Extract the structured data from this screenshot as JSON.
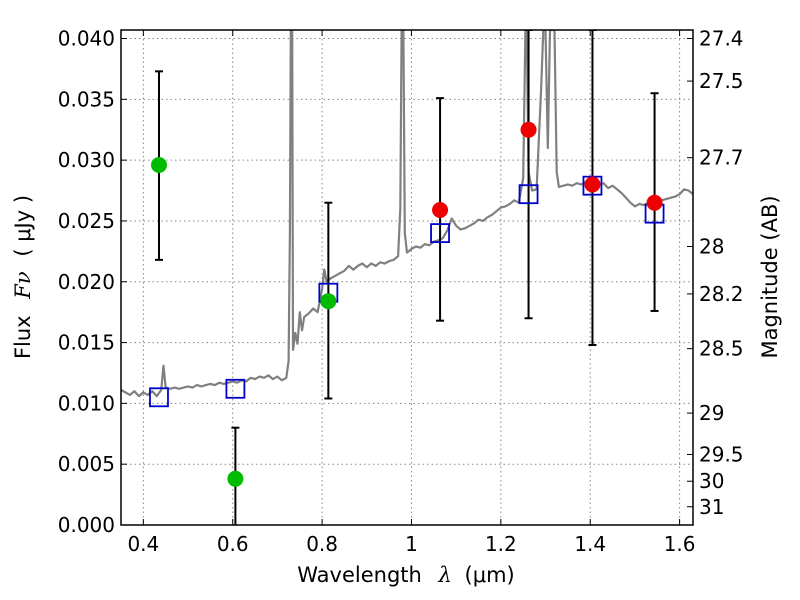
{
  "chart_data": {
    "type": "scatter",
    "xlabel": "Wavelength",
    "xlabel_symbol": "λ",
    "xlabel_unit": "(μm)",
    "ylabel": "Flux",
    "ylabel_symbol": "Fν",
    "ylabel_unit": "( μJy )",
    "ylabel_right": "Magnitude (AB)",
    "xlim": [
      0.35,
      1.63
    ],
    "ylim": [
      0.0,
      0.0407
    ],
    "grid": true,
    "x_ticks": [
      {
        "value": 0.4,
        "label": "0.4"
      },
      {
        "value": 0.6,
        "label": "0.6"
      },
      {
        "value": 0.8,
        "label": "0.8"
      },
      {
        "value": 1.0,
        "label": "1"
      },
      {
        "value": 1.2,
        "label": "1.2"
      },
      {
        "value": 1.4,
        "label": "1.4"
      },
      {
        "value": 1.6,
        "label": "1.6"
      }
    ],
    "y_ticks": [
      {
        "value": 0.0,
        "label": "0.000"
      },
      {
        "value": 0.005,
        "label": "0.005"
      },
      {
        "value": 0.01,
        "label": "0.010"
      },
      {
        "value": 0.015,
        "label": "0.015"
      },
      {
        "value": 0.02,
        "label": "0.020"
      },
      {
        "value": 0.025,
        "label": "0.025"
      },
      {
        "value": 0.03,
        "label": "0.030"
      },
      {
        "value": 0.035,
        "label": "0.035"
      },
      {
        "value": 0.04,
        "label": "0.040"
      }
    ],
    "magnitude_ticks": [
      {
        "value": 0.04,
        "label": "27.4"
      },
      {
        "value": 0.0365,
        "label": "27.5"
      },
      {
        "value": 0.0302,
        "label": "27.7"
      },
      {
        "value": 0.0229,
        "label": "28"
      },
      {
        "value": 0.019,
        "label": "28.2"
      },
      {
        "value": 0.0145,
        "label": "28.5"
      },
      {
        "value": 0.0092,
        "label": "29"
      },
      {
        "value": 0.0058,
        "label": "29.5"
      },
      {
        "value": 0.0036,
        "label": "30"
      },
      {
        "value": 0.0015,
        "label": "31"
      }
    ],
    "colors": {
      "spectrum": "#808080",
      "model_points": "#0000cc",
      "green_points": "#00bb00",
      "red_points": "#ee0000",
      "error_bars": "#000000",
      "grid": "#888888"
    },
    "series": [
      {
        "name": "model spectrum",
        "kind": "line",
        "points": [
          [
            0.35,
            0.0111
          ],
          [
            0.36,
            0.0109
          ],
          [
            0.37,
            0.0107
          ],
          [
            0.38,
            0.011
          ],
          [
            0.39,
            0.0106
          ],
          [
            0.4,
            0.0109
          ],
          [
            0.41,
            0.0107
          ],
          [
            0.42,
            0.011
          ],
          [
            0.43,
            0.0106
          ],
          [
            0.44,
            0.0111
          ],
          [
            0.445,
            0.0131
          ],
          [
            0.45,
            0.0113
          ],
          [
            0.46,
            0.0112
          ],
          [
            0.47,
            0.0113
          ],
          [
            0.48,
            0.0112
          ],
          [
            0.49,
            0.0113
          ],
          [
            0.5,
            0.0114
          ],
          [
            0.51,
            0.0113
          ],
          [
            0.52,
            0.0115
          ],
          [
            0.53,
            0.0114
          ],
          [
            0.54,
            0.0115
          ],
          [
            0.55,
            0.0116
          ],
          [
            0.56,
            0.0115
          ],
          [
            0.57,
            0.0117
          ],
          [
            0.58,
            0.0116
          ],
          [
            0.59,
            0.0117
          ],
          [
            0.6,
            0.0118
          ],
          [
            0.61,
            0.0117
          ],
          [
            0.62,
            0.0119
          ],
          [
            0.63,
            0.0118
          ],
          [
            0.64,
            0.0121
          ],
          [
            0.65,
            0.012
          ],
          [
            0.66,
            0.0122
          ],
          [
            0.67,
            0.0121
          ],
          [
            0.68,
            0.0123
          ],
          [
            0.69,
            0.012
          ],
          [
            0.7,
            0.0122
          ],
          [
            0.71,
            0.0119
          ],
          [
            0.72,
            0.0121
          ],
          [
            0.725,
            0.0135
          ],
          [
            0.728,
            0.0241
          ],
          [
            0.73,
            0.0407
          ],
          [
            0.733,
            0.0407
          ],
          [
            0.735,
            0.0144
          ],
          [
            0.74,
            0.0158
          ],
          [
            0.745,
            0.0149
          ],
          [
            0.75,
            0.0175
          ],
          [
            0.755,
            0.016
          ],
          [
            0.76,
            0.0171
          ],
          [
            0.77,
            0.0174
          ],
          [
            0.78,
            0.0178
          ],
          [
            0.79,
            0.0175
          ],
          [
            0.8,
            0.0194
          ],
          [
            0.805,
            0.021
          ],
          [
            0.81,
            0.02
          ],
          [
            0.82,
            0.0203
          ],
          [
            0.83,
            0.0205
          ],
          [
            0.84,
            0.0207
          ],
          [
            0.85,
            0.0209
          ],
          [
            0.86,
            0.0213
          ],
          [
            0.87,
            0.021
          ],
          [
            0.88,
            0.0213
          ],
          [
            0.89,
            0.0215
          ],
          [
            0.9,
            0.0212
          ],
          [
            0.91,
            0.0215
          ],
          [
            0.92,
            0.0213
          ],
          [
            0.93,
            0.0216
          ],
          [
            0.94,
            0.0215
          ],
          [
            0.95,
            0.0217
          ],
          [
            0.96,
            0.0218
          ],
          [
            0.97,
            0.0221
          ],
          [
            0.975,
            0.026
          ],
          [
            0.978,
            0.0407
          ],
          [
            0.982,
            0.0407
          ],
          [
            0.985,
            0.024
          ],
          [
            0.99,
            0.0224
          ],
          [
            1.0,
            0.0227
          ],
          [
            1.01,
            0.0229
          ],
          [
            1.02,
            0.0228
          ],
          [
            1.03,
            0.0231
          ],
          [
            1.04,
            0.023
          ],
          [
            1.05,
            0.0233
          ],
          [
            1.06,
            0.0234
          ],
          [
            1.07,
            0.0236
          ],
          [
            1.08,
            0.0242
          ],
          [
            1.09,
            0.0252
          ],
          [
            1.1,
            0.0246
          ],
          [
            1.11,
            0.0243
          ],
          [
            1.12,
            0.0244
          ],
          [
            1.13,
            0.0246
          ],
          [
            1.14,
            0.0248
          ],
          [
            1.15,
            0.0251
          ],
          [
            1.16,
            0.025
          ],
          [
            1.17,
            0.0253
          ],
          [
            1.18,
            0.0255
          ],
          [
            1.19,
            0.0258
          ],
          [
            1.2,
            0.0261
          ],
          [
            1.21,
            0.0262
          ],
          [
            1.22,
            0.0264
          ],
          [
            1.23,
            0.0267
          ],
          [
            1.24,
            0.0265
          ],
          [
            1.25,
            0.0285
          ],
          [
            1.255,
            0.0407
          ],
          [
            1.258,
            0.0407
          ],
          [
            1.262,
            0.029
          ],
          [
            1.27,
            0.0275
          ],
          [
            1.28,
            0.0276
          ],
          [
            1.29,
            0.0358
          ],
          [
            1.295,
            0.0407
          ],
          [
            1.3,
            0.0407
          ],
          [
            1.305,
            0.031
          ],
          [
            1.31,
            0.0407
          ],
          [
            1.32,
            0.0407
          ],
          [
            1.325,
            0.029
          ],
          [
            1.33,
            0.0278
          ],
          [
            1.34,
            0.0279
          ],
          [
            1.35,
            0.028
          ],
          [
            1.36,
            0.0279
          ],
          [
            1.37,
            0.0281
          ],
          [
            1.38,
            0.028
          ],
          [
            1.39,
            0.0282
          ],
          [
            1.4,
            0.028
          ],
          [
            1.41,
            0.0285
          ],
          [
            1.42,
            0.028
          ],
          [
            1.43,
            0.0281
          ],
          [
            1.44,
            0.0277
          ],
          [
            1.45,
            0.0279
          ],
          [
            1.46,
            0.0276
          ],
          [
            1.47,
            0.0273
          ],
          [
            1.48,
            0.0269
          ],
          [
            1.49,
            0.0265
          ],
          [
            1.5,
            0.0262
          ],
          [
            1.51,
            0.0264
          ],
          [
            1.52,
            0.0263
          ],
          [
            1.53,
            0.0265
          ],
          [
            1.54,
            0.0266
          ],
          [
            1.55,
            0.0265
          ],
          [
            1.56,
            0.0267
          ],
          [
            1.57,
            0.0268
          ],
          [
            1.58,
            0.0269
          ],
          [
            1.59,
            0.027
          ],
          [
            1.6,
            0.0272
          ],
          [
            1.61,
            0.0276
          ],
          [
            1.62,
            0.0275
          ],
          [
            1.63,
            0.0272
          ]
        ]
      },
      {
        "name": "model photometry",
        "kind": "square",
        "points": [
          {
            "x": 0.435,
            "y": 0.0105
          },
          {
            "x": 0.606,
            "y": 0.0112
          },
          {
            "x": 0.814,
            "y": 0.0191
          },
          {
            "x": 1.064,
            "y": 0.024
          },
          {
            "x": 1.262,
            "y": 0.0272
          },
          {
            "x": 1.405,
            "y": 0.0279
          },
          {
            "x": 1.544,
            "y": 0.0256
          }
        ]
      },
      {
        "name": "green observed points",
        "kind": "circle",
        "points": [
          {
            "x": 0.435,
            "y": 0.0296,
            "err_low": 0.0218,
            "err_high": 0.0373
          },
          {
            "x": 0.606,
            "y": 0.0038,
            "err_low": -0.0005,
            "err_high": 0.008
          },
          {
            "x": 0.814,
            "y": 0.0184,
            "err_low": 0.0104,
            "err_high": 0.0265
          }
        ]
      },
      {
        "name": "red observed points",
        "kind": "circle",
        "points": [
          {
            "x": 1.064,
            "y": 0.0259,
            "err_low": 0.0168,
            "err_high": 0.0351
          },
          {
            "x": 1.262,
            "y": 0.0325,
            "err_low": 0.017,
            "err_high": 0.0407
          },
          {
            "x": 1.405,
            "y": 0.028,
            "err_low": 0.0148,
            "err_high": 0.0407
          },
          {
            "x": 1.544,
            "y": 0.0265,
            "err_low": 0.0176,
            "err_high": 0.0355
          }
        ]
      }
    ]
  }
}
